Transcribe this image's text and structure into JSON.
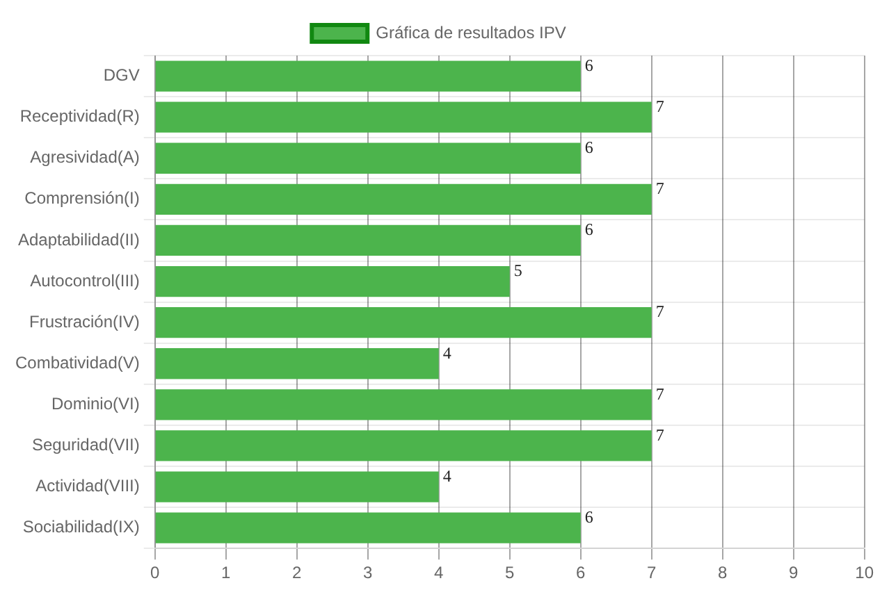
{
  "chart_data": {
    "type": "bar",
    "orientation": "horizontal",
    "categories": [
      "DGV",
      "Receptividad(R)",
      "Agresividad(A)",
      "Comprensión(I)",
      "Adaptabilidad(II)",
      "Autocontrol(III)",
      "Frustración(IV)",
      "Combatividad(V)",
      "Dominio(VI)",
      "Seguridad(VII)",
      "Actividad(VIII)",
      "Sociabilidad(IX)"
    ],
    "series": [
      {
        "name": "Gráfica de resultados IPV",
        "color": "#4cb44c",
        "values": [
          6,
          7,
          6,
          7,
          6,
          5,
          7,
          4,
          7,
          7,
          4,
          6
        ]
      }
    ],
    "xlim": [
      0,
      10
    ],
    "xticks": [
      0,
      1,
      2,
      3,
      4,
      5,
      6,
      7,
      8,
      9,
      10
    ],
    "grid": true,
    "legend": "top",
    "data_labels": true
  }
}
